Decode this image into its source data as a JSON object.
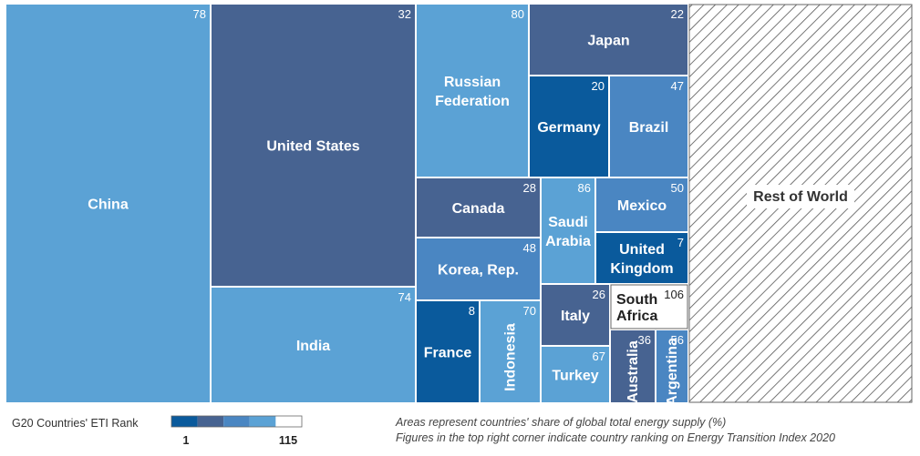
{
  "chart_data": {
    "type": "treemap",
    "value_label": "Areas represent countries' share of global total energy supply (%)",
    "rank_label": "Figures in the top right corner indicate country ranking on Energy Transition Index 2020",
    "colors": {
      "rank_1_20": "#0a5a9c",
      "rank_21_40": "#476391",
      "rank_41_60": "#4a86c2",
      "rank_61_100": "#5ba2d5",
      "rank_101_115": "#ffffff",
      "border": "#ffffff",
      "hatch_line": "#555555"
    },
    "items": [
      {
        "name": "China",
        "lines": [
          "China"
        ],
        "rank": "78"
      },
      {
        "name": "United States",
        "lines": [
          "United States"
        ],
        "rank": "32"
      },
      {
        "name": "India",
        "lines": [
          "India"
        ],
        "rank": "74"
      },
      {
        "name": "Russian Federation",
        "lines": [
          "Russian",
          "Federation"
        ],
        "rank": "80"
      },
      {
        "name": "Japan",
        "lines": [
          "Japan"
        ],
        "rank": "22"
      },
      {
        "name": "Germany",
        "lines": [
          "Germany"
        ],
        "rank": "20"
      },
      {
        "name": "Brazil",
        "lines": [
          "Brazil"
        ],
        "rank": "47"
      },
      {
        "name": "Canada",
        "lines": [
          "Canada"
        ],
        "rank": "28"
      },
      {
        "name": "Saudi Arabia",
        "lines": [
          "Saudi",
          "Arabia"
        ],
        "rank": "86"
      },
      {
        "name": "Mexico",
        "lines": [
          "Mexico"
        ],
        "rank": "50"
      },
      {
        "name": "United Kingdom",
        "lines": [
          "United",
          "Kingdom"
        ],
        "rank": "7"
      },
      {
        "name": "Korea, Rep.",
        "lines": [
          "Korea, Rep."
        ],
        "rank": "48"
      },
      {
        "name": "Italy",
        "lines": [
          "Italy"
        ],
        "rank": "26"
      },
      {
        "name": "South Africa",
        "lines": [
          "South",
          "Africa"
        ],
        "rank": "106"
      },
      {
        "name": "France",
        "lines": [
          "France"
        ],
        "rank": "8"
      },
      {
        "name": "Indonesia",
        "lines": [
          "Indonesia"
        ],
        "rank": "70"
      },
      {
        "name": "Turkey",
        "lines": [
          "Turkey"
        ],
        "rank": "67"
      },
      {
        "name": "Australia",
        "lines": [
          "Australia"
        ],
        "rank": "36"
      },
      {
        "name": "Argentina",
        "lines": [
          "Argentina"
        ],
        "rank": "56"
      },
      {
        "name": "Rest of World",
        "lines": [
          "Rest of World"
        ],
        "rank": ""
      }
    ],
    "legend": {
      "title": "G20 Countries' ETI Rank",
      "min_label": "1",
      "max_label": "115"
    }
  }
}
